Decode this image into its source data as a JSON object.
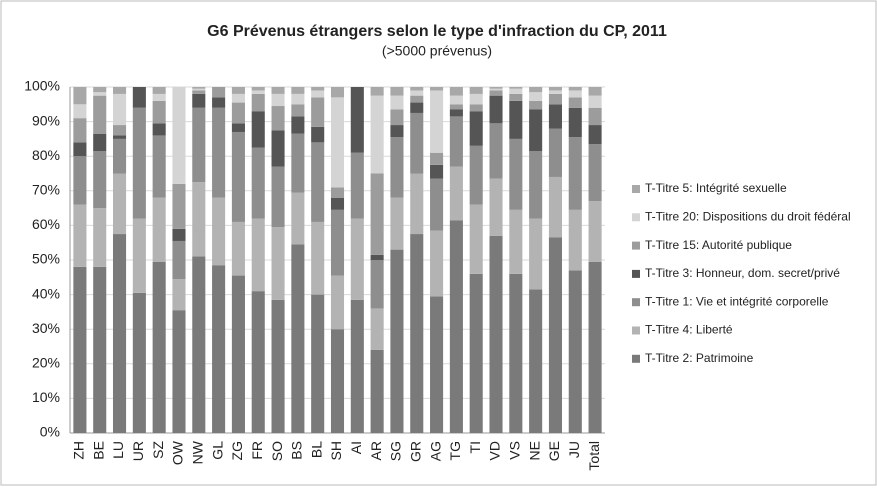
{
  "chart_data": {
    "type": "stacked_bar_100",
    "title": "G6 Prévenus étrangers selon le type d'infraction du CP, 2011",
    "subtitle": "(>5000 prévenus)",
    "categories": [
      "ZH",
      "BE",
      "LU",
      "UR",
      "SZ",
      "OW",
      "NW",
      "GL",
      "ZG",
      "FR",
      "SO",
      "BS",
      "BL",
      "SH",
      "AI",
      "AR",
      "SG",
      "GR",
      "AG",
      "TG",
      "TI",
      "VD",
      "VS",
      "NE",
      "GE",
      "JU",
      "Total"
    ],
    "series": [
      {
        "name": "T-Titre 2: Patrimoine",
        "color": "#7a7a7a",
        "values": [
          48,
          48,
          57.5,
          40.5,
          49.5,
          35.5,
          51,
          48.5,
          45.5,
          41,
          38.5,
          54.5,
          40,
          30,
          38.5,
          24,
          53,
          57.5,
          39.5,
          61.5,
          46,
          57,
          46,
          41.5,
          56.5,
          47,
          49.5
        ]
      },
      {
        "name": "T-Titre 4: Liberté",
        "color": "#b3b3b3",
        "values": [
          18,
          17,
          17.5,
          21.5,
          18.5,
          9,
          21.5,
          19.5,
          15.5,
          21,
          21,
          15,
          21,
          15.5,
          23.5,
          12,
          15,
          17.5,
          19,
          15.5,
          20,
          16.5,
          18.5,
          20.5,
          17.5,
          17.5,
          17.5
        ]
      },
      {
        "name": "T-Titre 1: Vie et intégrité corporelle",
        "color": "#8e8e8e",
        "values": [
          14,
          16.5,
          10,
          32,
          18,
          11,
          21.5,
          26,
          26,
          20.5,
          17.5,
          17,
          23,
          19,
          19,
          14,
          17.5,
          17.5,
          15,
          14.5,
          17,
          16,
          20.5,
          19.5,
          14,
          21,
          16.5
        ]
      },
      {
        "name": "T-Titre 3: Honneur, dom. secret/privé",
        "color": "#555555",
        "values": [
          4,
          5,
          1,
          6,
          3.5,
          3.5,
          4,
          3,
          2.5,
          10.5,
          10.5,
          5,
          4.5,
          3.5,
          19,
          1.5,
          3.5,
          3,
          4,
          2,
          10,
          8,
          11,
          12,
          7,
          8.5,
          5.5
        ]
      },
      {
        "name": "T-Titre 15: Autorité publique",
        "color": "#9c9c9c",
        "values": [
          7,
          11,
          3,
          0,
          6.5,
          13,
          1,
          3,
          6,
          5,
          7,
          3.5,
          8.5,
          3,
          0,
          23.5,
          4.5,
          2,
          3.5,
          1.5,
          2,
          1.5,
          2,
          2.5,
          3,
          3,
          5
        ]
      },
      {
        "name": "T-Titre 20: Dispositions du droit fédéral",
        "color": "#d4d4d4",
        "values": [
          4,
          1,
          9,
          0,
          2,
          28,
          0.5,
          0,
          2.5,
          1,
          3.5,
          3,
          2,
          26,
          0,
          22.5,
          4,
          1.5,
          18,
          2.5,
          3,
          0.5,
          1.5,
          2.5,
          1,
          2,
          3.5
        ]
      },
      {
        "name": "T-Titre 5: Intégrité sexuelle",
        "color": "#a8a8a8",
        "values": [
          5,
          1.5,
          2,
          0,
          2,
          0,
          0.5,
          0,
          2,
          1,
          2,
          2,
          1,
          3,
          0,
          2.5,
          2.5,
          1,
          1,
          2.5,
          2,
          0.5,
          0.5,
          1.5,
          1,
          1,
          2.5
        ]
      }
    ],
    "ylim": [
      0,
      100
    ],
    "yticks": [
      {
        "value": 0,
        "label": "0%"
      },
      {
        "value": 10,
        "label": "10%"
      },
      {
        "value": 20,
        "label": "20%"
      },
      {
        "value": 30,
        "label": "30%"
      },
      {
        "value": 40,
        "label": "40%"
      },
      {
        "value": 50,
        "label": "50%"
      },
      {
        "value": 60,
        "label": "60%"
      },
      {
        "value": 70,
        "label": "70%"
      },
      {
        "value": 80,
        "label": "80%"
      },
      {
        "value": 90,
        "label": "90%"
      },
      {
        "value": 100,
        "label": "100%"
      }
    ],
    "grid": true,
    "legend": "right"
  }
}
